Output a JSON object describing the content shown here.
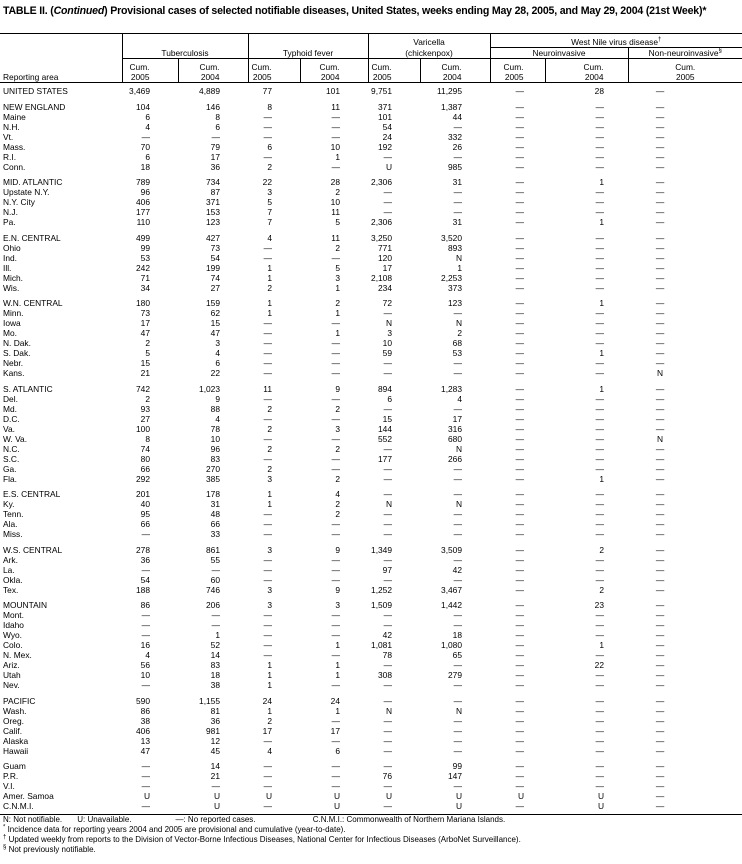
{
  "title": {
    "prefix": "TABLE II. (",
    "italic": "Continued",
    "text": ") Provisional cases of selected notifiable diseases, United States, weeks ending May 28, 2005, and May 29, 2004 (21st Week)",
    "mark": "*"
  },
  "header": {
    "reporting_area": "Reporting area",
    "tuberculosis": "Tuberculosis",
    "typhoid": "Typhoid fever",
    "varicella_1": "Varicella",
    "varicella_2": "(chickenpox)",
    "west_nile": "West Nile virus disease",
    "west_nile_mark": "†",
    "neuro": "Neuroinvasive",
    "nonneuro": "Non-neuroinvasive",
    "nonneuro_mark": "§",
    "cum": "Cum.",
    "y2005": "2005",
    "y2004": "2004"
  },
  "sections": [
    [
      [
        "UNITED STATES",
        "3,469",
        "4,889",
        "77",
        "101",
        "9,751",
        "11,295",
        "—",
        "28",
        "—"
      ]
    ],
    [
      [
        "NEW ENGLAND",
        "104",
        "146",
        "8",
        "11",
        "371",
        "1,387",
        "—",
        "—",
        "—"
      ],
      [
        "Maine",
        "6",
        "8",
        "—",
        "—",
        "101",
        "44",
        "—",
        "—",
        "—"
      ],
      [
        "N.H.",
        "4",
        "6",
        "—",
        "—",
        "54",
        "—",
        "—",
        "—",
        "—"
      ],
      [
        "Vt.",
        "—",
        "—",
        "—",
        "—",
        "24",
        "332",
        "—",
        "—",
        "—"
      ],
      [
        "Mass.",
        "70",
        "79",
        "6",
        "10",
        "192",
        "26",
        "—",
        "—",
        "—"
      ],
      [
        "R.I.",
        "6",
        "17",
        "—",
        "1",
        "—",
        "—",
        "—",
        "—",
        "—"
      ],
      [
        "Conn.",
        "18",
        "36",
        "2",
        "—",
        "U",
        "985",
        "—",
        "—",
        "—"
      ]
    ],
    [
      [
        "MID. ATLANTIC",
        "789",
        "734",
        "22",
        "28",
        "2,306",
        "31",
        "—",
        "1",
        "—"
      ],
      [
        "Upstate N.Y.",
        "96",
        "87",
        "3",
        "2",
        "—",
        "—",
        "—",
        "—",
        "—"
      ],
      [
        "N.Y. City",
        "406",
        "371",
        "5",
        "10",
        "—",
        "—",
        "—",
        "—",
        "—"
      ],
      [
        "N.J.",
        "177",
        "153",
        "7",
        "11",
        "—",
        "—",
        "—",
        "—",
        "—"
      ],
      [
        "Pa.",
        "110",
        "123",
        "7",
        "5",
        "2,306",
        "31",
        "—",
        "1",
        "—"
      ]
    ],
    [
      [
        "E.N. CENTRAL",
        "499",
        "427",
        "4",
        "11",
        "3,250",
        "3,520",
        "—",
        "—",
        "—"
      ],
      [
        "Ohio",
        "99",
        "73",
        "—",
        "2",
        "771",
        "893",
        "—",
        "—",
        "—"
      ],
      [
        "Ind.",
        "53",
        "54",
        "—",
        "—",
        "120",
        "N",
        "—",
        "—",
        "—"
      ],
      [
        "Ill.",
        "242",
        "199",
        "1",
        "5",
        "17",
        "1",
        "—",
        "—",
        "—"
      ],
      [
        "Mich.",
        "71",
        "74",
        "1",
        "3",
        "2,108",
        "2,253",
        "—",
        "—",
        "—"
      ],
      [
        "Wis.",
        "34",
        "27",
        "2",
        "1",
        "234",
        "373",
        "—",
        "—",
        "—"
      ]
    ],
    [
      [
        "W.N. CENTRAL",
        "180",
        "159",
        "1",
        "2",
        "72",
        "123",
        "—",
        "1",
        "—"
      ],
      [
        "Minn.",
        "73",
        "62",
        "1",
        "1",
        "—",
        "—",
        "—",
        "—",
        "—"
      ],
      [
        "Iowa",
        "17",
        "15",
        "—",
        "—",
        "N",
        "N",
        "—",
        "—",
        "—"
      ],
      [
        "Mo.",
        "47",
        "47",
        "—",
        "1",
        "3",
        "2",
        "—",
        "—",
        "—"
      ],
      [
        "N. Dak.",
        "2",
        "3",
        "—",
        "—",
        "10",
        "68",
        "—",
        "—",
        "—"
      ],
      [
        "S. Dak.",
        "5",
        "4",
        "—",
        "—",
        "59",
        "53",
        "—",
        "1",
        "—"
      ],
      [
        "Nebr.",
        "15",
        "6",
        "—",
        "—",
        "—",
        "—",
        "—",
        "—",
        "—"
      ],
      [
        "Kans.",
        "21",
        "22",
        "—",
        "—",
        "—",
        "—",
        "—",
        "—",
        "N"
      ]
    ],
    [
      [
        "S. ATLANTIC",
        "742",
        "1,023",
        "11",
        "9",
        "894",
        "1,283",
        "—",
        "1",
        "—"
      ],
      [
        "Del.",
        "2",
        "9",
        "—",
        "—",
        "6",
        "4",
        "—",
        "—",
        "—"
      ],
      [
        "Md.",
        "93",
        "88",
        "2",
        "2",
        "—",
        "—",
        "—",
        "—",
        "—"
      ],
      [
        "D.C.",
        "27",
        "4",
        "—",
        "—",
        "15",
        "17",
        "—",
        "—",
        "—"
      ],
      [
        "Va.",
        "100",
        "78",
        "2",
        "3",
        "144",
        "316",
        "—",
        "—",
        "—"
      ],
      [
        "W. Va.",
        "8",
        "10",
        "—",
        "—",
        "552",
        "680",
        "—",
        "—",
        "N"
      ],
      [
        "N.C.",
        "74",
        "96",
        "2",
        "2",
        "—",
        "N",
        "—",
        "—",
        "—"
      ],
      [
        "S.C.",
        "80",
        "83",
        "—",
        "—",
        "177",
        "266",
        "—",
        "—",
        "—"
      ],
      [
        "Ga.",
        "66",
        "270",
        "2",
        "—",
        "—",
        "—",
        "—",
        "—",
        "—"
      ],
      [
        "Fla.",
        "292",
        "385",
        "3",
        "2",
        "—",
        "—",
        "—",
        "1",
        "—"
      ]
    ],
    [
      [
        "E.S. CENTRAL",
        "201",
        "178",
        "1",
        "4",
        "—",
        "—",
        "—",
        "—",
        "—"
      ],
      [
        "Ky.",
        "40",
        "31",
        "1",
        "2",
        "N",
        "N",
        "—",
        "—",
        "—"
      ],
      [
        "Tenn.",
        "95",
        "48",
        "—",
        "2",
        "—",
        "—",
        "—",
        "—",
        "—"
      ],
      [
        "Ala.",
        "66",
        "66",
        "—",
        "—",
        "—",
        "—",
        "—",
        "—",
        "—"
      ],
      [
        "Miss.",
        "—",
        "33",
        "—",
        "—",
        "—",
        "—",
        "—",
        "—",
        "—"
      ]
    ],
    [
      [
        "W.S. CENTRAL",
        "278",
        "861",
        "3",
        "9",
        "1,349",
        "3,509",
        "—",
        "2",
        "—"
      ],
      [
        "Ark.",
        "36",
        "55",
        "—",
        "—",
        "—",
        "—",
        "—",
        "—",
        "—"
      ],
      [
        "La.",
        "—",
        "—",
        "—",
        "—",
        "97",
        "42",
        "—",
        "—",
        "—"
      ],
      [
        "Okla.",
        "54",
        "60",
        "—",
        "—",
        "—",
        "—",
        "—",
        "—",
        "—"
      ],
      [
        "Tex.",
        "188",
        "746",
        "3",
        "9",
        "1,252",
        "3,467",
        "—",
        "2",
        "—"
      ]
    ],
    [
      [
        "MOUNTAIN",
        "86",
        "206",
        "3",
        "3",
        "1,509",
        "1,442",
        "—",
        "23",
        "—"
      ],
      [
        "Mont.",
        "—",
        "—",
        "—",
        "—",
        "—",
        "—",
        "—",
        "—",
        "—"
      ],
      [
        "Idaho",
        "—",
        "—",
        "—",
        "—",
        "—",
        "—",
        "—",
        "—",
        "—"
      ],
      [
        "Wyo.",
        "—",
        "1",
        "—",
        "—",
        "42",
        "18",
        "—",
        "—",
        "—"
      ],
      [
        "Colo.",
        "16",
        "52",
        "—",
        "1",
        "1,081",
        "1,080",
        "—",
        "1",
        "—"
      ],
      [
        "N. Mex.",
        "4",
        "14",
        "—",
        "—",
        "78",
        "65",
        "—",
        "—",
        "—"
      ],
      [
        "Ariz.",
        "56",
        "83",
        "1",
        "1",
        "—",
        "—",
        "—",
        "22",
        "—"
      ],
      [
        "Utah",
        "10",
        "18",
        "1",
        "1",
        "308",
        "279",
        "—",
        "—",
        "—"
      ],
      [
        "Nev.",
        "—",
        "38",
        "1",
        "—",
        "—",
        "—",
        "—",
        "—",
        "—"
      ]
    ],
    [
      [
        "PACIFIC",
        "590",
        "1,155",
        "24",
        "24",
        "—",
        "—",
        "—",
        "—",
        "—"
      ],
      [
        "Wash.",
        "86",
        "81",
        "1",
        "1",
        "N",
        "N",
        "—",
        "—",
        "—"
      ],
      [
        "Oreg.",
        "38",
        "36",
        "2",
        "—",
        "—",
        "—",
        "—",
        "—",
        "—"
      ],
      [
        "Calif.",
        "406",
        "981",
        "17",
        "17",
        "—",
        "—",
        "—",
        "—",
        "—"
      ],
      [
        "Alaska",
        "13",
        "12",
        "—",
        "—",
        "—",
        "—",
        "—",
        "—",
        "—"
      ],
      [
        "Hawaii",
        "47",
        "45",
        "4",
        "6",
        "—",
        "—",
        "—",
        "—",
        "—"
      ]
    ],
    [
      [
        "Guam",
        "—",
        "14",
        "—",
        "—",
        "—",
        "99",
        "—",
        "—",
        "—"
      ],
      [
        "P.R.",
        "—",
        "21",
        "—",
        "—",
        "76",
        "147",
        "—",
        "—",
        "—"
      ],
      [
        "V.I.",
        "—",
        "—",
        "—",
        "—",
        "—",
        "—",
        "—",
        "—",
        "—"
      ],
      [
        "Amer. Samoa",
        "U",
        "U",
        "U",
        "U",
        "U",
        "U",
        "U",
        "U",
        "—"
      ],
      [
        "C.N.M.I.",
        "—",
        "U",
        "—",
        "U",
        "—",
        "U",
        "—",
        "U",
        "—"
      ]
    ]
  ],
  "footnotes": {
    "n": "N: Not notifiable.",
    "u": "U: Unavailable.",
    "dash": "—: No reported cases.",
    "cnmi": "C.N.M.I.: Commonwealth of Northern Mariana Islands.",
    "star_mark": "*",
    "star": "Incidence data for reporting years 2004 and 2005 are provisional and cumulative (year-to-date).",
    "dagger_mark": "†",
    "dagger": "Updated weekly from reports to the Division of Vector-Borne Infectious Diseases, National Center for Infectious Diseases (ArboNet Surveillance).",
    "section_mark": "§",
    "section": "Not previously notifiable."
  }
}
